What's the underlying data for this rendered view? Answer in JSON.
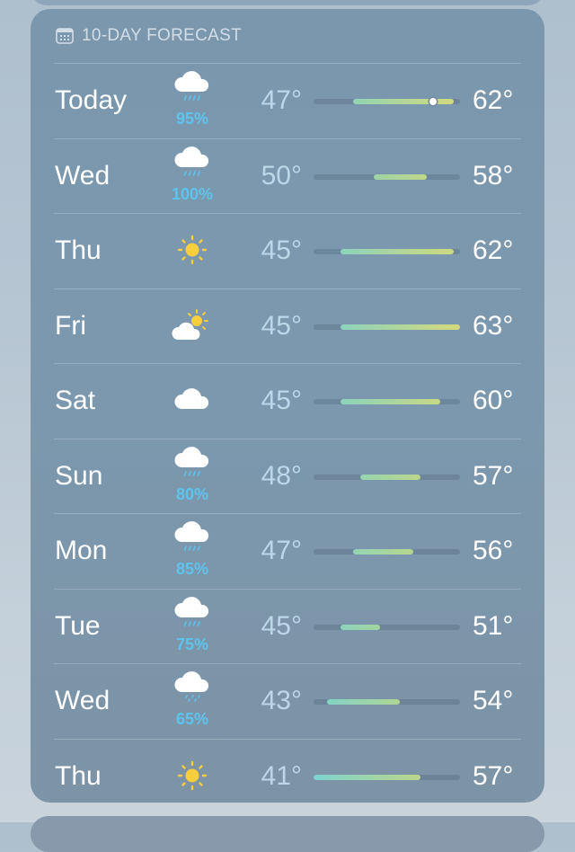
{
  "forecast": {
    "title": "10-DAY FORECAST",
    "title_icon": "calendar-icon",
    "range": [
      41,
      63
    ],
    "current_temp": 59,
    "colors": {
      "precip": "#5ec4ee",
      "sun": "#f7cf3c",
      "cool": "#7dd3d0",
      "mild": "#a6d49a",
      "warm": "#d4d97a"
    },
    "days": [
      {
        "day": "Today",
        "icon": "cloud-rain",
        "precip": "95%",
        "low": "47°",
        "high": "62°",
        "lo_val": 47,
        "hi_val": 62
      },
      {
        "day": "Wed",
        "icon": "cloud-rain",
        "precip": "100%",
        "low": "50°",
        "high": "58°",
        "lo_val": 50,
        "hi_val": 58
      },
      {
        "day": "Thu",
        "icon": "sun",
        "low": "45°",
        "high": "62°",
        "lo_val": 45,
        "hi_val": 62
      },
      {
        "day": "Fri",
        "icon": "partly-cloudy",
        "low": "45°",
        "high": "63°",
        "lo_val": 45,
        "hi_val": 63
      },
      {
        "day": "Sat",
        "icon": "cloud",
        "low": "45°",
        "high": "60°",
        "lo_val": 45,
        "hi_val": 60
      },
      {
        "day": "Sun",
        "icon": "cloud-rain",
        "precip": "80%",
        "low": "48°",
        "high": "57°",
        "lo_val": 48,
        "hi_val": 57
      },
      {
        "day": "Mon",
        "icon": "cloud-rain",
        "precip": "85%",
        "low": "47°",
        "high": "56°",
        "lo_val": 47,
        "hi_val": 56
      },
      {
        "day": "Tue",
        "icon": "cloud-rain",
        "precip": "75%",
        "low": "45°",
        "high": "51°",
        "lo_val": 45,
        "hi_val": 51
      },
      {
        "day": "Wed",
        "icon": "cloud-drizzle",
        "precip": "65%",
        "low": "43°",
        "high": "54°",
        "lo_val": 43,
        "hi_val": 54
      },
      {
        "day": "Thu",
        "icon": "sun",
        "low": "41°",
        "high": "57°",
        "lo_val": 41,
        "hi_val": 57
      }
    ]
  }
}
